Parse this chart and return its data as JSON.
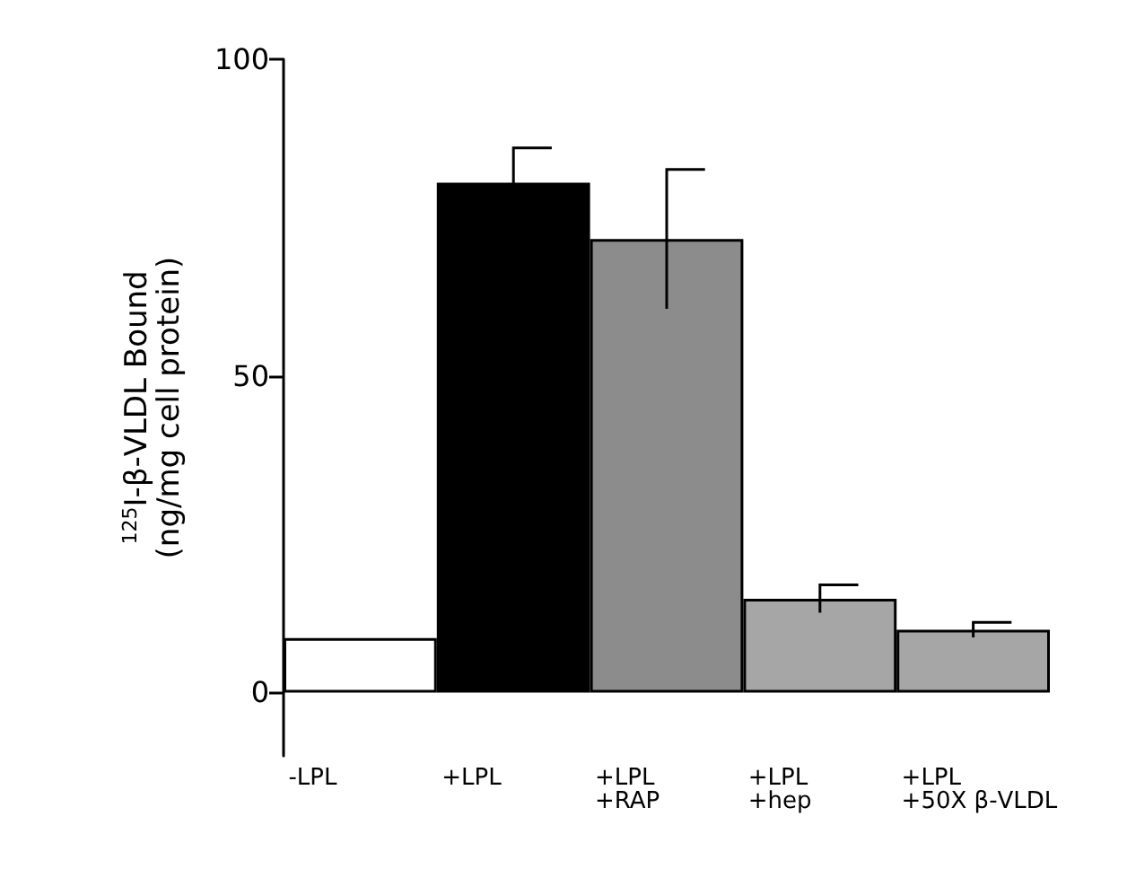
{
  "chart_data": {
    "type": "bar",
    "ylabel": "$^{125}$I-β-VLDL Bound\n(ng/mg cell protein)",
    "categories": [
      "-LPL",
      "+LPL",
      "+LPL\n+RAP",
      "+LPL\n+hep",
      "+LPL\n+50X β-VLDL"
    ],
    "values": [
      8.6,
      80.5,
      71.6,
      14.8,
      9.9
    ],
    "errors": [
      null,
      5.5,
      11,
      2.2,
      1.2
    ],
    "colors": [
      "#ffffff",
      "#000000",
      "#8c8c8c",
      "#a6a6a6",
      "#a6a6a6"
    ],
    "ylim": [
      -10,
      100
    ],
    "yticks": [
      0,
      50,
      100
    ],
    "grid": false
  }
}
